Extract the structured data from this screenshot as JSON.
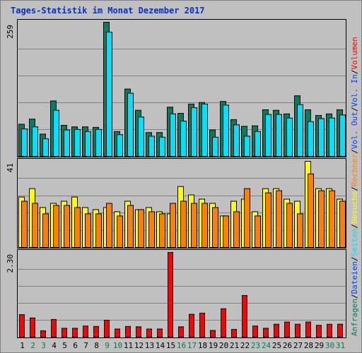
{
  "chart_data": {
    "title": "Tages-Statistik im Monat Dezember 2017",
    "type": "bar",
    "days": [
      "1",
      "2",
      "3",
      "4",
      "5",
      "6",
      "7",
      "8",
      "9",
      "10",
      "11",
      "12",
      "13",
      "14",
      "15",
      "16",
      "17",
      "18",
      "19",
      "20",
      "21",
      "22",
      "23",
      "24",
      "25",
      "26",
      "27",
      "28",
      "29",
      "30",
      "31"
    ],
    "weekend_days": [
      "2",
      "3",
      "9",
      "10",
      "16",
      "17",
      "23",
      "24",
      "30",
      "31"
    ],
    "colors": {
      "day_normal": "#000000",
      "day_weekend": "#008040",
      "anfragen": "#008060",
      "dateien": "#0040ff",
      "seiten": "#00e0ff",
      "besuche": "#ffff00",
      "rechner": "#ff8000",
      "volumen": "#ff0000"
    },
    "panels": [
      {
        "id": "requests",
        "max_label": "259",
        "max_value": 259,
        "series": [
          {
            "key": "anfragen",
            "values": [
              62,
              72,
              43,
              107,
              60,
              57,
              57,
              56,
              259,
              48,
              130,
              89,
              46,
              46,
              95,
              83,
              101,
              104,
              51,
              106,
              71,
              58,
              59,
              90,
              89,
              82,
              117,
              90,
              79,
              82,
              90
            ]
          },
          {
            "key": "seiten",
            "values": [
              53,
              57,
              34,
              89,
              51,
              52,
              48,
              52,
              240,
              42,
              122,
              76,
              39,
              37,
              82,
              68,
              94,
              101,
              37,
              99,
              61,
              39,
              48,
              81,
              81,
              74,
              100,
              67,
              73,
              74,
              80
            ]
          }
        ]
      },
      {
        "id": "visits",
        "max_label": "41",
        "max_value": 41,
        "series": [
          {
            "key": "besuche",
            "values": [
              24,
              28,
              19,
              21,
              22,
              24,
              19,
              18,
              19,
              17,
              22,
              18,
              19,
              17,
              16,
              29,
              25,
              23,
              21,
              15,
              22,
              23,
              17,
              28,
              28,
              23,
              22,
              41,
              28,
              28,
              23
            ]
          },
          {
            "key": "rechner",
            "values": [
              22,
              21,
              16,
              20,
              20,
              19,
              16,
              16,
              21,
              15,
              20,
              18,
              17,
              16,
              21,
              22,
              21,
              21,
              19,
              15,
              17,
              28,
              15,
              26,
              27,
              21,
              16,
              35,
              27,
              27,
              22
            ]
          }
        ]
      },
      {
        "id": "volume",
        "max_label": "2.30",
        "max_value": 2.3,
        "series": [
          {
            "key": "volumen",
            "values": [
              0.61,
              0.52,
              0.17,
              0.48,
              0.24,
              0.24,
              0.3,
              0.29,
              0.46,
              0.22,
              0.29,
              0.28,
              0.22,
              0.22,
              2.3,
              0.28,
              0.62,
              0.65,
              0.18,
              0.77,
              0.21,
              1.13,
              0.3,
              0.24,
              0.35,
              0.41,
              0.35,
              0.41,
              0.32,
              0.35,
              0.35
            ]
          }
        ]
      }
    ],
    "right_legend": [
      {
        "text": "Anfragen",
        "key": "anfragen"
      },
      {
        "text": "/",
        "key": "sep"
      },
      {
        "text": "Dateien",
        "key": "dateien"
      },
      {
        "text": "/",
        "key": "sep"
      },
      {
        "text": "Seiten",
        "key": "seiten"
      },
      {
        "text": "/",
        "key": "sep"
      },
      {
        "text": "Besuche",
        "key": "besuche"
      },
      {
        "text": "/",
        "key": "sep"
      },
      {
        "text": "Rechner",
        "key": "rechner"
      },
      {
        "text": "/",
        "key": "sep"
      },
      {
        "text": "Vol. Out",
        "key": "dateien"
      },
      {
        "text": "/",
        "key": "sep"
      },
      {
        "text": "Vol. In",
        "key": "dateien"
      },
      {
        "text": "/",
        "key": "sep"
      },
      {
        "text": "Volumen",
        "key": "volumen"
      }
    ]
  }
}
